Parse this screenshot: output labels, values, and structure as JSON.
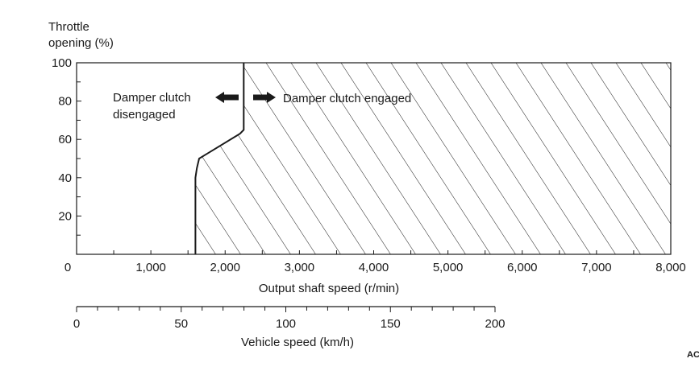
{
  "chart_data": {
    "type": "area",
    "ylabel_line1": "Throttle",
    "ylabel_line2": "opening (%)",
    "xlabel": "Output shaft speed (r/min)",
    "secondary_xlabel": "Vehicle speed (km/h)",
    "xlim": [
      0,
      8000
    ],
    "ylim": [
      0,
      100
    ],
    "secondary_xlim": [
      0,
      200
    ],
    "x_ticks": [
      0,
      1000,
      2000,
      3000,
      4000,
      5000,
      6000,
      7000,
      8000
    ],
    "x_tick_labels": [
      "0",
      "1,000",
      "2,000",
      "3,000",
      "4,000",
      "5,000",
      "6,000",
      "7,000",
      "8,000"
    ],
    "y_ticks": [
      20,
      40,
      60,
      80,
      100
    ],
    "y_tick_labels": [
      "20",
      "40",
      "60",
      "80",
      "100"
    ],
    "secondary_x_ticks": [
      0,
      50,
      100,
      150,
      200
    ],
    "secondary_x_tick_labels": [
      "0",
      "50",
      "100",
      "150",
      "200"
    ],
    "boundary": {
      "x": [
        1600,
        1600,
        1620,
        1650,
        2200,
        2250,
        2250
      ],
      "y": [
        0,
        40,
        45,
        50,
        63,
        65,
        100
      ]
    },
    "regions": [
      {
        "name": "Damper clutch disengaged",
        "side": "left of boundary",
        "fill": "none"
      },
      {
        "name": "Damper clutch engaged",
        "side": "right of boundary",
        "fill": "diagonal hatch"
      }
    ],
    "annotations": {
      "disengaged_line1": "Damper clutch",
      "disengaged_line2": "disengaged",
      "engaged": "Damper clutch engaged"
    },
    "corner_mark": "AC"
  }
}
